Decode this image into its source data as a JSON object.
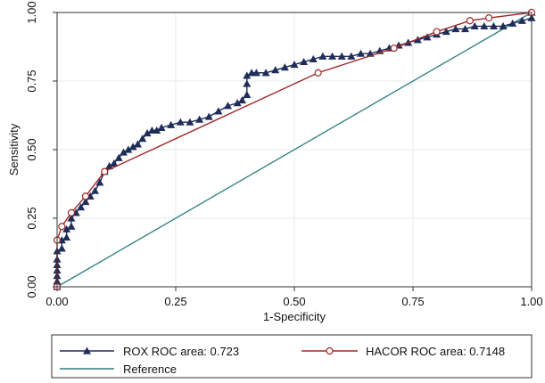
{
  "chart_data": {
    "type": "line",
    "title": "",
    "xlabel": "1-Specificity",
    "ylabel": "Sensitivity",
    "xlim": [
      0,
      1
    ],
    "ylim": [
      0,
      1
    ],
    "xticks": [
      "0.00",
      "0.25",
      "0.50",
      "0.75",
      "1.00"
    ],
    "yticks": [
      "0.00",
      "0.25",
      "0.50",
      "0.75",
      "1.00"
    ],
    "xtick_values": [
      0,
      0.25,
      0.5,
      0.75,
      1
    ],
    "ytick_values": [
      0,
      0.25,
      0.5,
      0.75,
      1
    ],
    "grid": true,
    "legend_position": "bottom",
    "series": [
      {
        "name": "ROX  ROC area: 0.723",
        "color": "#1f2d5a",
        "marker": "triangle",
        "x": [
          0,
          0,
          0,
          0,
          0,
          0,
          0,
          0.01,
          0.01,
          0.02,
          0.02,
          0.03,
          0.03,
          0.04,
          0.05,
          0.06,
          0.07,
          0.08,
          0.09,
          0.1,
          0.11,
          0.12,
          0.13,
          0.14,
          0.15,
          0.16,
          0.17,
          0.18,
          0.19,
          0.2,
          0.21,
          0.22,
          0.24,
          0.26,
          0.28,
          0.3,
          0.32,
          0.34,
          0.36,
          0.38,
          0.39,
          0.4,
          0.4,
          0.4,
          0.41,
          0.42,
          0.44,
          0.46,
          0.48,
          0.5,
          0.52,
          0.54,
          0.56,
          0.58,
          0.6,
          0.62,
          0.64,
          0.66,
          0.68,
          0.7,
          0.72,
          0.74,
          0.76,
          0.78,
          0.8,
          0.82,
          0.84,
          0.86,
          0.88,
          0.9,
          0.92,
          0.94,
          0.96,
          0.98,
          1.0,
          1.0
        ],
        "y": [
          0,
          0.02,
          0.04,
          0.06,
          0.08,
          0.1,
          0.13,
          0.14,
          0.17,
          0.18,
          0.21,
          0.22,
          0.25,
          0.27,
          0.29,
          0.31,
          0.33,
          0.35,
          0.38,
          0.42,
          0.44,
          0.45,
          0.47,
          0.49,
          0.5,
          0.51,
          0.52,
          0.54,
          0.56,
          0.57,
          0.57,
          0.58,
          0.59,
          0.6,
          0.6,
          0.61,
          0.62,
          0.64,
          0.66,
          0.67,
          0.68,
          0.7,
          0.74,
          0.77,
          0.78,
          0.78,
          0.78,
          0.79,
          0.8,
          0.81,
          0.82,
          0.83,
          0.84,
          0.84,
          0.84,
          0.84,
          0.85,
          0.85,
          0.86,
          0.87,
          0.88,
          0.89,
          0.9,
          0.91,
          0.92,
          0.93,
          0.94,
          0.94,
          0.95,
          0.95,
          0.95,
          0.95,
          0.96,
          0.97,
          0.98,
          1.0
        ]
      },
      {
        "name": "HACOR ROC area: 0.7148",
        "color": "#a02828",
        "marker": "circle",
        "x": [
          0,
          0,
          0.01,
          0.03,
          0.06,
          0.1,
          0.55,
          0.71,
          0.8,
          0.87,
          0.91,
          1.0
        ],
        "y": [
          0,
          0.17,
          0.22,
          0.27,
          0.33,
          0.42,
          0.78,
          0.87,
          0.93,
          0.97,
          0.98,
          1.0
        ]
      },
      {
        "name": "Reference",
        "color": "#2e7d7d",
        "marker": "none",
        "x": [
          0,
          1
        ],
        "y": [
          0,
          1
        ]
      }
    ]
  }
}
